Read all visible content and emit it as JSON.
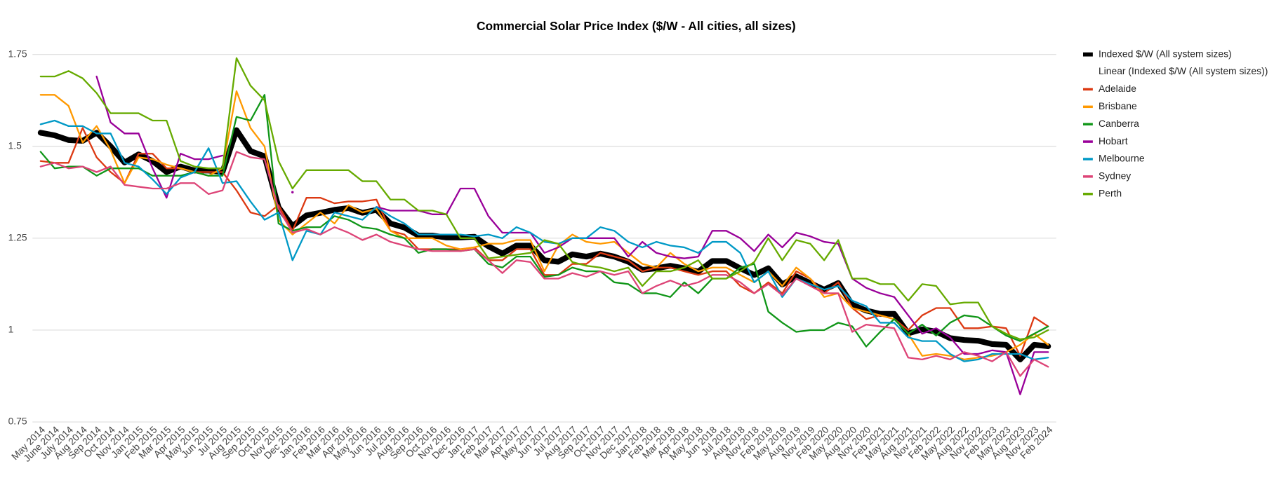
{
  "chart_data": {
    "type": "line",
    "title": "Commercial Solar Price Index ($/W - All cities, all sizes)",
    "categories": [
      "May 2014",
      "June 2014",
      "July 2014",
      "Aug 2014",
      "Sep 2014",
      "Oct 2014",
      "Nov 2014",
      "Jan 2015",
      "Feb 2015",
      "Mar 2015",
      "Apr 2015",
      "May 2015",
      "Jun 2015",
      "Jul 2015",
      "Aug 2015",
      "Sep 2015",
      "Oct 2015",
      "Nov 2015",
      "Dec 2015",
      "Jan 2016",
      "Feb 2016",
      "Mar 2016",
      "Apr 2016",
      "May 2016",
      "Jun 2016",
      "Jul 2016",
      "Aug 2016",
      "Sep 2016",
      "Oct 2016",
      "Nov 2016",
      "Dec 2016",
      "Jan 2017",
      "Feb 2017",
      "Mar 2017",
      "Apr 2017",
      "May 2017",
      "Jun 2017",
      "Jul 2017",
      "Aug 2017",
      "Sep 2017",
      "Oct 2017",
      "Nov 2017",
      "Dec 2017",
      "Jan 2018",
      "Feb 2018",
      "Mar 2018",
      "Apr 2018",
      "May 2018",
      "Jun 2018",
      "Jul 2018",
      "Aug 2018",
      "Nov 2018",
      "Feb 2019",
      "May 2019",
      "Aug 2019",
      "Nov 2019",
      "Feb 2020",
      "May 2020",
      "Aug 2020",
      "Nov 2020",
      "Feb 2021",
      "May 2021",
      "Aug 2021",
      "Nov 2021",
      "Feb 2022",
      "May 2022",
      "Aug 2022",
      "Nov 2022",
      "Feb 2023",
      "May 2023",
      "Aug 2023",
      "Nov 2023",
      "Feb 2024"
    ],
    "series": [
      {
        "name": "Indexed $/W (All system sizes)",
        "color": "#000000",
        "width": 7,
        "values": [
          1.537,
          1.53,
          1.517,
          1.515,
          1.537,
          1.5,
          1.456,
          1.478,
          1.46,
          1.43,
          1.445,
          1.434,
          1.434,
          1.43,
          1.544,
          1.487,
          1.473,
          1.334,
          1.283,
          1.312,
          1.319,
          1.327,
          1.332,
          1.319,
          1.327,
          1.29,
          1.279,
          1.257,
          1.257,
          1.252,
          1.252,
          1.254,
          1.228,
          1.208,
          1.23,
          1.23,
          1.19,
          1.186,
          1.206,
          1.2,
          1.208,
          1.2,
          1.186,
          1.164,
          1.168,
          1.175,
          1.168,
          1.159,
          1.188,
          1.188,
          1.168,
          1.15,
          1.168,
          1.124,
          1.146,
          1.128,
          1.11,
          1.128,
          1.069,
          1.053,
          1.044,
          1.044,
          0.991,
          1.002,
          0.996,
          0.978,
          0.973,
          0.971,
          0.962,
          0.96,
          0.92,
          0.96,
          0.956
        ]
      },
      {
        "name": "Adelaide",
        "color": "#dc3912",
        "width": 2,
        "values": [
          1.46,
          1.455,
          1.455,
          1.55,
          1.47,
          1.43,
          1.4,
          1.48,
          1.48,
          1.44,
          1.44,
          1.43,
          1.43,
          1.43,
          1.38,
          1.32,
          1.31,
          1.34,
          1.27,
          1.36,
          1.36,
          1.345,
          1.35,
          1.35,
          1.355,
          1.27,
          1.26,
          1.22,
          1.22,
          1.22,
          1.22,
          1.225,
          1.19,
          1.19,
          1.22,
          1.22,
          1.15,
          1.15,
          1.18,
          1.18,
          1.21,
          1.2,
          1.19,
          1.16,
          1.17,
          1.17,
          1.16,
          1.15,
          1.16,
          1.16,
          1.12,
          1.1,
          1.13,
          1.1,
          1.16,
          1.14,
          1.1,
          1.13,
          1.06,
          1.03,
          1.04,
          1.03,
          1.0,
          1.04,
          1.06,
          1.06,
          1.005,
          1.005,
          1.01,
          1.005,
          0.93,
          1.035,
          1.01
        ]
      },
      {
        "name": "Brisbane",
        "color": "#ff9900",
        "width": 2,
        "values": [
          1.64,
          1.64,
          1.61,
          1.51,
          1.555,
          1.49,
          1.4,
          1.47,
          1.465,
          1.45,
          1.44,
          1.43,
          1.42,
          1.44,
          1.65,
          1.55,
          1.5,
          1.3,
          1.26,
          1.29,
          1.32,
          1.29,
          1.34,
          1.32,
          1.33,
          1.27,
          1.25,
          1.25,
          1.25,
          1.23,
          1.22,
          1.225,
          1.235,
          1.235,
          1.245,
          1.245,
          1.16,
          1.23,
          1.26,
          1.24,
          1.235,
          1.24,
          1.21,
          1.18,
          1.17,
          1.21,
          1.18,
          1.16,
          1.17,
          1.17,
          1.15,
          1.13,
          1.16,
          1.12,
          1.17,
          1.14,
          1.09,
          1.1,
          1.06,
          1.05,
          1.04,
          1.03,
          0.99,
          0.93,
          0.935,
          0.93,
          0.92,
          0.925,
          0.93,
          0.94,
          0.96,
          0.99,
          0.96
        ]
      },
      {
        "name": "Canberra",
        "color": "#109618",
        "width": 2,
        "values": [
          1.485,
          1.44,
          1.445,
          1.445,
          1.42,
          1.44,
          1.44,
          1.44,
          1.42,
          1.42,
          1.42,
          1.43,
          1.42,
          1.42,
          1.58,
          1.57,
          1.64,
          1.29,
          1.27,
          1.28,
          1.28,
          1.31,
          1.3,
          1.28,
          1.275,
          1.26,
          1.25,
          1.21,
          1.22,
          1.22,
          1.215,
          1.22,
          1.18,
          1.17,
          1.2,
          1.2,
          1.145,
          1.15,
          1.17,
          1.16,
          1.16,
          1.13,
          1.125,
          1.1,
          1.1,
          1.09,
          1.13,
          1.1,
          1.14,
          1.14,
          1.17,
          1.18,
          1.05,
          1.02,
          0.995,
          1.0,
          1.0,
          1.02,
          1.01,
          0.955,
          0.995,
          1.03,
          0.99,
          1.015,
          0.985,
          1.02,
          1.04,
          1.035,
          1.01,
          0.985,
          0.97,
          0.99,
          1.01
        ]
      },
      {
        "name": "Hobart",
        "color": "#990099",
        "width": 2,
        "values": [
          null,
          null,
          null,
          null,
          1.69,
          1.565,
          1.535,
          1.535,
          1.44,
          1.36,
          1.48,
          1.465,
          1.465,
          1.475,
          null,
          null,
          null,
          null,
          1.375,
          null,
          null,
          null,
          null,
          null,
          1.335,
          1.325,
          1.325,
          1.325,
          1.315,
          1.315,
          1.385,
          1.385,
          1.31,
          1.265,
          1.265,
          1.265,
          1.21,
          1.225,
          1.25,
          1.25,
          1.25,
          1.25,
          1.2,
          1.24,
          1.21,
          1.2,
          1.195,
          1.2,
          1.27,
          1.27,
          1.25,
          1.215,
          1.26,
          1.225,
          1.265,
          1.255,
          1.24,
          1.235,
          1.14,
          1.115,
          1.1,
          1.09,
          1.04,
          0.99,
          1.005,
          0.98,
          0.935,
          0.935,
          0.945,
          0.94,
          0.825,
          0.94,
          0.94
        ]
      },
      {
        "name": "Melbourne",
        "color": "#0099c6",
        "width": 2,
        "values": [
          1.56,
          1.57,
          1.555,
          1.555,
          1.535,
          1.535,
          1.455,
          1.445,
          1.41,
          1.37,
          1.415,
          1.43,
          1.495,
          1.4,
          1.405,
          1.35,
          1.3,
          1.32,
          1.19,
          1.27,
          1.26,
          1.32,
          1.31,
          1.3,
          1.335,
          1.31,
          1.29,
          1.26,
          1.26,
          1.26,
          1.26,
          1.255,
          1.26,
          1.25,
          1.28,
          1.265,
          1.24,
          1.235,
          1.25,
          1.25,
          1.28,
          1.27,
          1.24,
          1.225,
          1.24,
          1.23,
          1.225,
          1.21,
          1.24,
          1.24,
          1.21,
          1.13,
          1.16,
          1.09,
          1.14,
          1.125,
          1.11,
          1.12,
          1.08,
          1.065,
          1.02,
          1.02,
          0.98,
          0.97,
          0.97,
          0.935,
          0.915,
          0.92,
          0.935,
          0.935,
          0.935,
          0.92,
          0.925
        ]
      },
      {
        "name": "Sydney",
        "color": "#dd4477",
        "width": 2,
        "values": [
          1.445,
          1.455,
          1.44,
          1.445,
          1.43,
          1.445,
          1.395,
          1.39,
          1.385,
          1.385,
          1.4,
          1.4,
          1.37,
          1.38,
          1.485,
          1.47,
          1.465,
          1.33,
          1.265,
          1.275,
          1.26,
          1.28,
          1.265,
          1.245,
          1.26,
          1.24,
          1.23,
          1.22,
          1.215,
          1.215,
          1.215,
          1.22,
          1.19,
          1.155,
          1.19,
          1.185,
          1.14,
          1.14,
          1.155,
          1.145,
          1.16,
          1.15,
          1.16,
          1.1,
          1.12,
          1.135,
          1.12,
          1.13,
          1.15,
          1.15,
          1.13,
          1.1,
          1.125,
          1.095,
          1.14,
          1.12,
          1.1,
          1.1,
          0.995,
          1.015,
          1.01,
          1.005,
          0.925,
          0.92,
          0.93,
          0.92,
          0.94,
          0.93,
          0.915,
          0.94,
          0.875,
          0.92,
          0.9
        ]
      },
      {
        "name": "Perth",
        "color": "#66aa00",
        "width": 2,
        "values": [
          1.69,
          1.69,
          1.705,
          1.685,
          1.645,
          1.59,
          1.59,
          1.59,
          1.57,
          1.57,
          1.46,
          1.445,
          1.44,
          1.44,
          1.74,
          1.665,
          1.625,
          1.46,
          1.385,
          1.435,
          1.435,
          1.435,
          1.435,
          1.405,
          1.405,
          1.355,
          1.355,
          1.325,
          1.325,
          1.315,
          1.25,
          1.25,
          1.195,
          1.2,
          1.205,
          1.21,
          1.245,
          1.235,
          1.185,
          1.175,
          1.17,
          1.16,
          1.17,
          1.12,
          1.16,
          1.16,
          1.17,
          1.19,
          1.14,
          1.14,
          1.16,
          1.185,
          1.25,
          1.19,
          1.245,
          1.235,
          1.19,
          1.245,
          1.14,
          1.14,
          1.125,
          1.125,
          1.08,
          1.125,
          1.12,
          1.07,
          1.075,
          1.075,
          1.01,
          0.99,
          0.975,
          0.98,
          1.0
        ]
      }
    ],
    "trendline": {
      "name": "Linear (Indexed $/W (All system sizes))",
      "color": "#ffffff"
    },
    "ylim": [
      0.75,
      1.75
    ],
    "yticks": [
      0.75,
      1,
      1.25,
      1.5,
      1.75
    ],
    "grid": true,
    "legend": "right"
  }
}
